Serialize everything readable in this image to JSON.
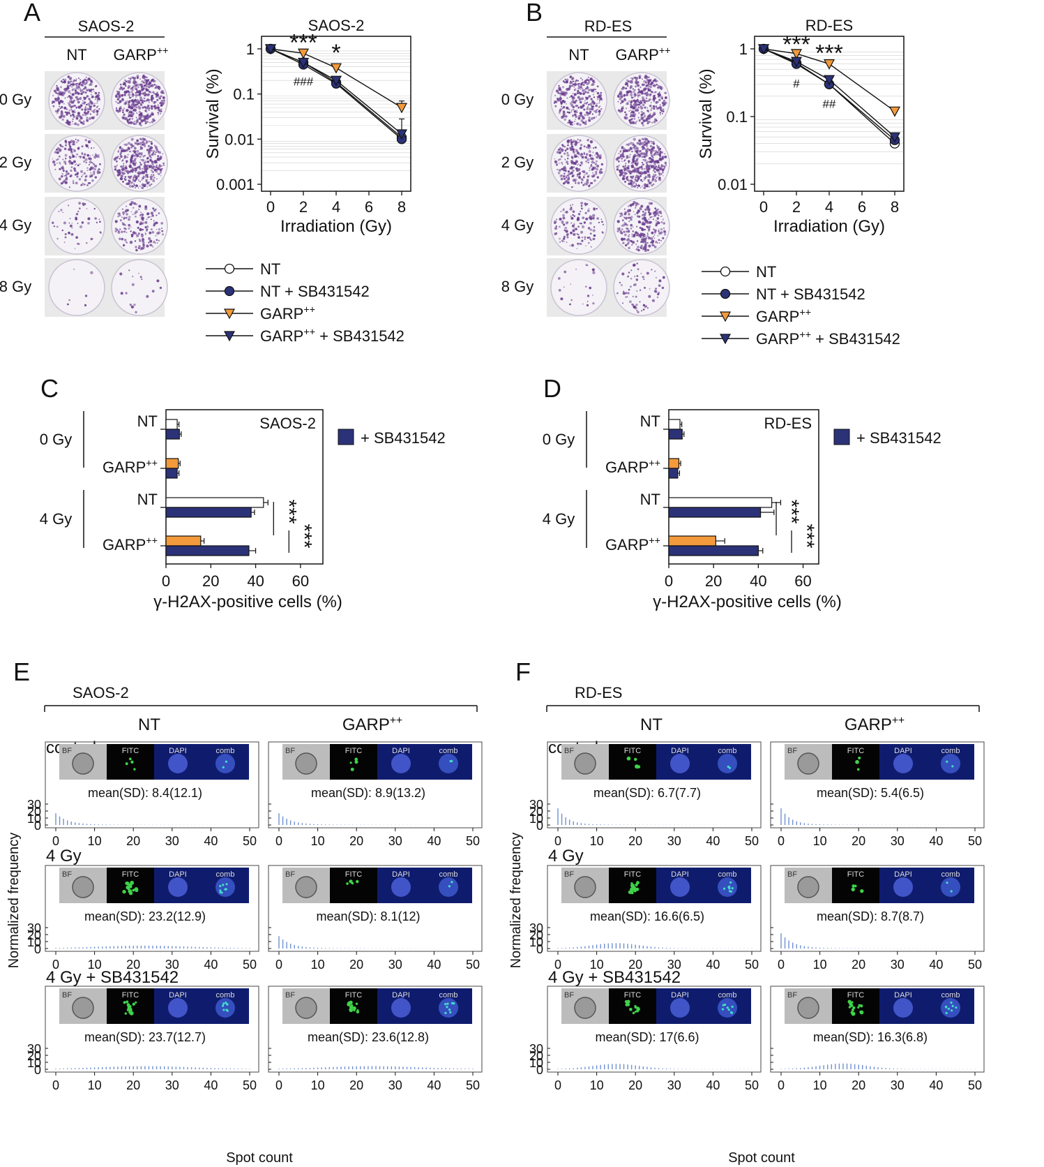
{
  "colors": {
    "navy": "#2b3278",
    "orange": "#f39a3c",
    "white": "#ffffff",
    "bar_blue": "#6f90cf",
    "purple": "#6a3d8f"
  },
  "panels": {
    "A": {
      "letter": "A",
      "cell_line": "SAOS-2",
      "col_labels": [
        "NT",
        "GARP++"
      ],
      "dose_labels": [
        "0 Gy",
        "2 Gy",
        "4 Gy",
        "8 Gy"
      ],
      "plate_density": [
        0.75,
        0.45,
        0.12,
        0.015
      ],
      "plate_density_garp": [
        1.0,
        0.85,
        0.4,
        0.04
      ]
    },
    "B": {
      "letter": "B",
      "cell_line": "RD-ES",
      "col_labels": [
        "NT",
        "GARP++"
      ],
      "dose_labels": [
        "0 Gy",
        "2 Gy",
        "4 Gy",
        "8 Gy"
      ],
      "plate_density": [
        0.7,
        0.6,
        0.3,
        0.05
      ],
      "plate_density_garp": [
        0.85,
        1.0,
        0.65,
        0.16
      ]
    },
    "C": {
      "letter": "C",
      "cell_line": "SAOS-2",
      "legend_label": "+ SB431542"
    },
    "D": {
      "letter": "D",
      "cell_line": "RD-ES",
      "legend_label": "+ SB431542"
    },
    "E": {
      "letter": "E",
      "cell_line": "SAOS-2"
    },
    "F": {
      "letter": "F",
      "cell_line": "RD-ES"
    }
  },
  "legend_survival": [
    "NT",
    "NT + SB431542",
    "GARP++",
    "GARP++ + SB431542"
  ],
  "chart_data": [
    {
      "id": "survival-saos2",
      "type": "line",
      "title": "SAOS-2",
      "xlabel": "Irradiation (Gy)",
      "ylabel": "Survival (%)",
      "yscale": "log",
      "xlim": [
        0,
        8
      ],
      "ylim": [
        0.001,
        1
      ],
      "xticks": [
        0,
        2,
        4,
        6,
        8
      ],
      "yticks": [
        0.001,
        0.01,
        0.1,
        1
      ],
      "ytick_labels": [
        "0.001",
        "0.01",
        "0.1",
        "1"
      ],
      "x": [
        0,
        2,
        4,
        8
      ],
      "series": [
        {
          "name": "NT",
          "values": [
            1,
            0.5,
            0.18,
            0.011
          ],
          "err": [
            0.05,
            0.05,
            0.02,
            0.002
          ]
        },
        {
          "name": "NT + SB431542",
          "values": [
            1,
            0.45,
            0.17,
            0.01
          ],
          "err": [
            0.05,
            0.05,
            0.02,
            0.002
          ]
        },
        {
          "name": "GARP++",
          "values": [
            1,
            0.8,
            0.38,
            0.05
          ],
          "err": [
            0.05,
            0.06,
            0.08,
            0.02
          ]
        },
        {
          "name": "GARP++ + SB431542",
          "values": [
            1,
            0.5,
            0.2,
            0.013
          ],
          "err": [
            0.05,
            0.05,
            0.03,
            0.015
          ]
        }
      ],
      "annotations": [
        "***",
        "*",
        "###"
      ]
    },
    {
      "id": "survival-rdes",
      "type": "line",
      "title": "RD-ES",
      "xlabel": "Irradiation (Gy)",
      "ylabel": "Survival (%)",
      "yscale": "log",
      "xlim": [
        0,
        8
      ],
      "ylim": [
        0.01,
        1
      ],
      "xticks": [
        0,
        2,
        4,
        6,
        8
      ],
      "yticks": [
        0.01,
        0.1,
        1
      ],
      "ytick_labels": [
        "0.01",
        "0.1",
        "1"
      ],
      "x": [
        0,
        2,
        4,
        8
      ],
      "series": [
        {
          "name": "NT",
          "values": [
            1,
            0.62,
            0.3,
            0.04
          ],
          "err": [
            0.05,
            0.05,
            0.03,
            0.005
          ]
        },
        {
          "name": "NT + SB431542",
          "values": [
            1,
            0.6,
            0.3,
            0.045
          ],
          "err": [
            0.05,
            0.05,
            0.03,
            0.005
          ]
        },
        {
          "name": "GARP++",
          "values": [
            1,
            0.85,
            0.6,
            0.12
          ],
          "err": [
            0.05,
            0.05,
            0.07,
            0.01
          ]
        },
        {
          "name": "GARP++ + SB431542",
          "values": [
            1,
            0.65,
            0.35,
            0.05
          ],
          "err": [
            0.05,
            0.05,
            0.04,
            0.006
          ]
        }
      ],
      "annotations": [
        "***",
        "***",
        "#",
        "##"
      ]
    },
    {
      "id": "h2ax-saos2",
      "type": "bar",
      "orientation": "horizontal",
      "title": "SAOS-2",
      "xlabel": "γ-H2AX-positive cells (%)",
      "xlim": [
        0,
        70
      ],
      "xticks": [
        0,
        20,
        40,
        60
      ],
      "groups": [
        "0 Gy",
        "4 Gy"
      ],
      "categories": [
        "NT",
        "GARP++"
      ],
      "bars": [
        {
          "group": "0 Gy",
          "category": "NT",
          "treatment": "control",
          "value": 5,
          "err": 0.8
        },
        {
          "group": "0 Gy",
          "category": "NT",
          "treatment": "+ SB431542",
          "value": 6,
          "err": 0.8
        },
        {
          "group": "0 Gy",
          "category": "GARP++",
          "treatment": "control",
          "value": 5.5,
          "err": 0.8
        },
        {
          "group": "0 Gy",
          "category": "GARP++",
          "treatment": "+ SB431542",
          "value": 5,
          "err": 0.8
        },
        {
          "group": "4 Gy",
          "category": "NT",
          "treatment": "control",
          "value": 43.5,
          "err": 2
        },
        {
          "group": "4 Gy",
          "category": "NT",
          "treatment": "+ SB431542",
          "value": 38,
          "err": 1.5
        },
        {
          "group": "4 Gy",
          "category": "GARP++",
          "treatment": "control",
          "value": 15.5,
          "err": 1.5
        },
        {
          "group": "4 Gy",
          "category": "GARP++",
          "treatment": "+ SB431542",
          "value": 37,
          "err": 3
        }
      ],
      "annotations": [
        "***",
        "***"
      ]
    },
    {
      "id": "h2ax-rdes",
      "type": "bar",
      "orientation": "horizontal",
      "title": "RD-ES",
      "xlabel": "γ-H2AX-positive cells (%)",
      "xlim": [
        0,
        67
      ],
      "xticks": [
        0,
        20,
        40,
        60
      ],
      "groups": [
        "0 Gy",
        "4 Gy"
      ],
      "categories": [
        "NT",
        "GARP++"
      ],
      "bars": [
        {
          "group": "0 Gy",
          "category": "NT",
          "treatment": "control",
          "value": 5,
          "err": 0.8
        },
        {
          "group": "0 Gy",
          "category": "NT",
          "treatment": "+ SB431542",
          "value": 6,
          "err": 0.8
        },
        {
          "group": "0 Gy",
          "category": "GARP++",
          "treatment": "control",
          "value": 4.5,
          "err": 0.8
        },
        {
          "group": "0 Gy",
          "category": "GARP++",
          "treatment": "+ SB431542",
          "value": 4,
          "err": 0.8
        },
        {
          "group": "4 Gy",
          "category": "NT",
          "treatment": "control",
          "value": 46,
          "err": 4
        },
        {
          "group": "4 Gy",
          "category": "NT",
          "treatment": "+ SB431542",
          "value": 41,
          "err": 6
        },
        {
          "group": "4 Gy",
          "category": "GARP++",
          "treatment": "control",
          "value": 21,
          "err": 4
        },
        {
          "group": "4 Gy",
          "category": "GARP++",
          "treatment": "+ SB431542",
          "value": 40,
          "err": 2
        }
      ],
      "annotations": [
        "***",
        "***"
      ]
    }
  ],
  "histograms": {
    "ylabel": "Normalized frequency",
    "xlabel": "Spot count",
    "xticks": [
      0,
      10,
      20,
      30,
      40,
      50
    ],
    "yticks": [
      0,
      10,
      20,
      30
    ],
    "col_labels": [
      "NT",
      "GARP++"
    ],
    "row_labels": [
      "control",
      "4 Gy",
      "4 Gy + SB431542"
    ],
    "image_labels": [
      "BF",
      "FITC",
      "DAPI",
      "comb"
    ],
    "E": [
      [
        {
          "mean_text": "mean(SD): 8.4(12.1)",
          "shape": "decay",
          "peak": 16,
          "center": 0,
          "width": 3
        },
        {
          "mean_text": "mean(SD): 8.9(13.2)",
          "shape": "decay",
          "peak": 16,
          "center": 0,
          "width": 3
        }
      ],
      [
        {
          "mean_text": "mean(SD): 23.2(12.9)",
          "shape": "gauss",
          "peak": 3.8,
          "center": 23,
          "width": 12
        },
        {
          "mean_text": "mean(SD): 8.1(12)",
          "shape": "decay",
          "peak": 17,
          "center": 0,
          "width": 3
        }
      ],
      [
        {
          "mean_text": "mean(SD): 23.7(12.7)",
          "shape": "gauss",
          "peak": 4.2,
          "center": 23,
          "width": 12
        },
        {
          "mean_text": "mean(SD): 23.6(12.8)",
          "shape": "gauss",
          "peak": 4.2,
          "center": 24,
          "width": 12
        }
      ]
    ],
    "F": [
      [
        {
          "mean_text": "mean(SD): 6.7(7.7)",
          "shape": "decay",
          "peak": 23,
          "center": 0,
          "width": 2.5
        },
        {
          "mean_text": "mean(SD): 5.4(6.5)",
          "shape": "decay",
          "peak": 23,
          "center": 0,
          "width": 2.5
        }
      ],
      [
        {
          "mean_text": "mean(SD): 16.6(6.5)",
          "shape": "gauss",
          "peak": 7.5,
          "center": 15,
          "width": 6
        },
        {
          "mean_text": "mean(SD): 8.7(8.7)",
          "shape": "decay",
          "peak": 21,
          "center": 0,
          "width": 3
        }
      ],
      [
        {
          "mean_text": "mean(SD): 17(6.6)",
          "shape": "gauss",
          "peak": 7.5,
          "center": 15,
          "width": 6
        },
        {
          "mean_text": "mean(SD): 16.3(6.8)",
          "shape": "gauss",
          "peak": 8,
          "center": 16,
          "width": 6
        }
      ]
    ]
  }
}
